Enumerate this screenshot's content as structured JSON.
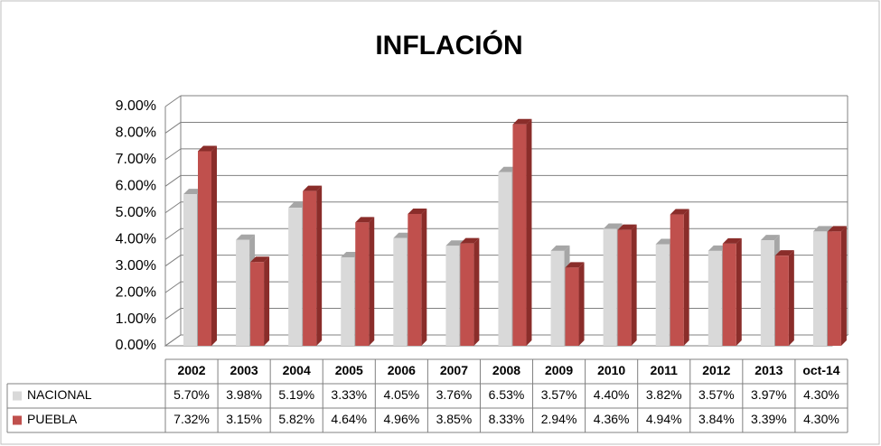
{
  "chart_data": {
    "type": "bar3d",
    "title": "INFLACIÓN",
    "categories": [
      "2002",
      "2003",
      "2004",
      "2005",
      "2006",
      "2007",
      "2008",
      "2009",
      "2010",
      "2011",
      "2012",
      "2013",
      "oct-14"
    ],
    "series": [
      {
        "name": "NACIONAL",
        "color": "#d9d9d9",
        "values": [
          5.7,
          3.98,
          5.19,
          3.33,
          4.05,
          3.76,
          6.53,
          3.57,
          4.4,
          3.82,
          3.57,
          3.97,
          4.3
        ],
        "value_labels": [
          "5.70%",
          "3.98%",
          "5.19%",
          "3.33%",
          "4.05%",
          "3.76%",
          "6.53%",
          "3.57%",
          "4.40%",
          "3.82%",
          "3.57%",
          "3.97%",
          "4.30%"
        ]
      },
      {
        "name": "PUEBLA",
        "color": "#c0504d",
        "values": [
          7.32,
          3.15,
          5.82,
          4.64,
          4.96,
          3.85,
          8.33,
          2.94,
          4.36,
          4.94,
          3.84,
          3.39,
          4.3
        ],
        "value_labels": [
          "7.32%",
          "3.15%",
          "5.82%",
          "4.64%",
          "4.96%",
          "3.85%",
          "8.33%",
          "2.94%",
          "4.36%",
          "4.94%",
          "3.84%",
          "3.39%",
          "4.30%"
        ]
      }
    ],
    "ylim": [
      0,
      9
    ],
    "yticks": [
      {
        "value": 0,
        "label": "0.00%"
      },
      {
        "value": 1,
        "label": "1.00%"
      },
      {
        "value": 2,
        "label": "2.00%"
      },
      {
        "value": 3,
        "label": "3.00%"
      },
      {
        "value": 4,
        "label": "4.00%"
      },
      {
        "value": 5,
        "label": "5.00%"
      },
      {
        "value": 6,
        "label": "6.00%"
      },
      {
        "value": 7,
        "label": "7.00%"
      },
      {
        "value": 8,
        "label": "8.00%"
      },
      {
        "value": 9,
        "label": "9.00%"
      }
    ],
    "grid": true
  }
}
